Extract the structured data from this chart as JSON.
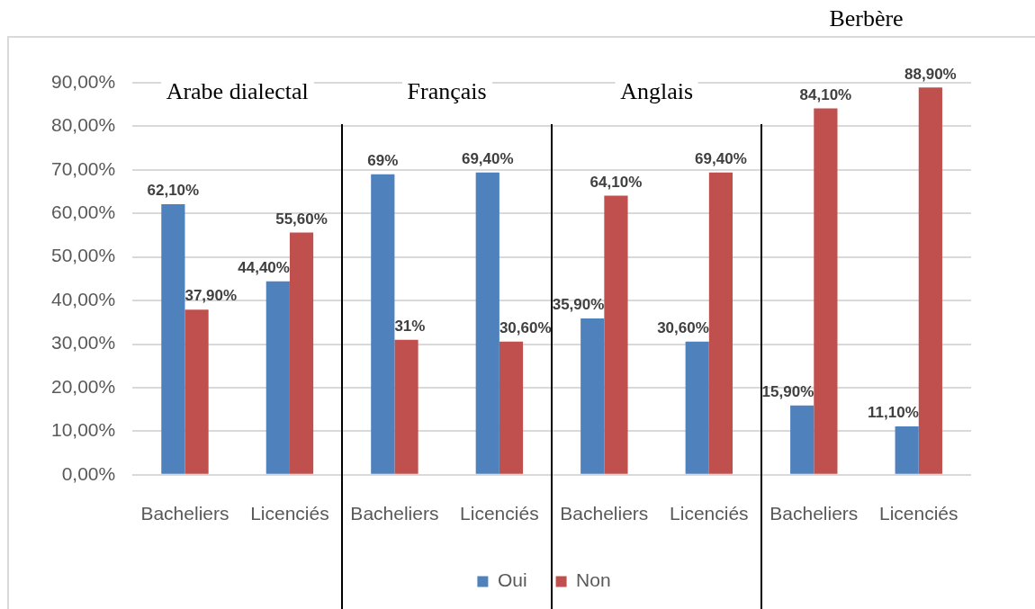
{
  "chart_data": {
    "type": "bar",
    "categories": [
      "Bacheliers",
      "Licenciés",
      "Bacheliers",
      "Licenciés",
      "Bacheliers",
      "Licenciés",
      "Bacheliers",
      "Licenciés"
    ],
    "series": [
      {
        "name": "Oui",
        "color": "#4f81bd",
        "values": [
          62.1,
          44.4,
          69,
          69.4,
          35.9,
          30.6,
          15.9,
          11.1
        ],
        "value_labels": [
          "62,10%",
          "44,40%",
          "69%",
          "69,40%",
          "35,90%",
          "30,60%",
          "15,90%",
          "11,10%"
        ]
      },
      {
        "name": "Non",
        "color": "#c0504d",
        "values": [
          37.9,
          55.6,
          31,
          30.6,
          64.1,
          69.4,
          84.1,
          88.9
        ],
        "value_labels": [
          "37,90%",
          "55,60%",
          "31%",
          "30,60%",
          "64,10%",
          "69,40%",
          "84,10%",
          "88,90%"
        ]
      }
    ],
    "ylim": [
      0,
      90
    ],
    "yticks": [
      {
        "value": 0,
        "label": "0,00%"
      },
      {
        "value": 10,
        "label": "10,00%"
      },
      {
        "value": 20,
        "label": "20,00%"
      },
      {
        "value": 30,
        "label": "30,00%"
      },
      {
        "value": 40,
        "label": "40,00%"
      },
      {
        "value": 50,
        "label": "50,00%"
      },
      {
        "value": 60,
        "label": "60,00%"
      },
      {
        "value": 70,
        "label": "70,00%"
      },
      {
        "value": 80,
        "label": "80,00%"
      },
      {
        "value": 90,
        "label": "90,00%"
      }
    ],
    "grid": "y",
    "legend": "bottom",
    "annotations": [
      "Arabe dialectal",
      "Français",
      "Anglais",
      "Berbère"
    ]
  }
}
